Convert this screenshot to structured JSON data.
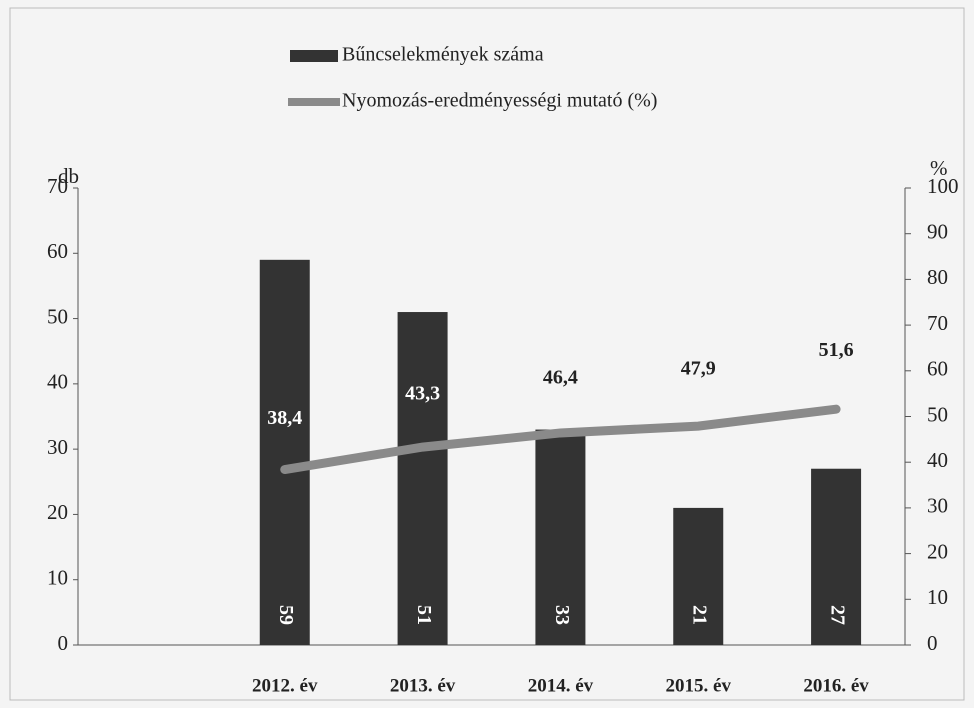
{
  "chart_data": {
    "type": "bar",
    "categories": [
      "2012. év",
      "2013. év",
      "2014. év",
      "2015. év",
      "2016. év"
    ],
    "ylabel": "db",
    "y2label": "%",
    "ylim": [
      0,
      70
    ],
    "yticks": [
      0,
      10,
      20,
      30,
      40,
      50,
      60,
      70
    ],
    "y2lim": [
      0,
      100
    ],
    "y2ticks": [
      0,
      10,
      20,
      30,
      40,
      50,
      60,
      70,
      80,
      90,
      100
    ],
    "series": [
      {
        "name": "Bűncselekmények száma",
        "type": "bar",
        "color": "#333333",
        "values": [
          59,
          51,
          33,
          21,
          27
        ]
      },
      {
        "name": "Nyomozás-eredményességi mutató (%)",
        "type": "line",
        "axis": "y2",
        "color": "#8a8a8a",
        "values": [
          38.4,
          43.3,
          46.4,
          47.9,
          51.6
        ],
        "value_labels": [
          "38,4",
          "43,3",
          "46,4",
          "47,9",
          "51,6"
        ]
      }
    ]
  }
}
